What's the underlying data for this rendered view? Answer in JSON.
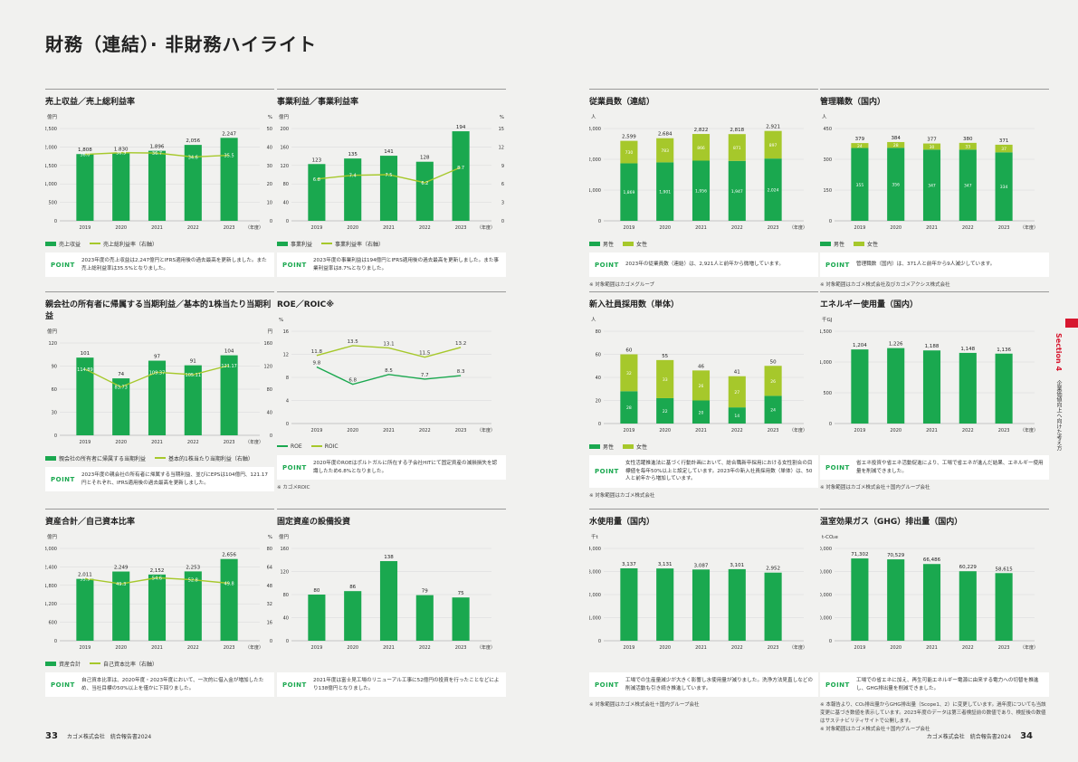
{
  "page_title": "財務（連結）· 非財務ハイライト",
  "section": {
    "label": "Section 4",
    "sub": "企業価値向上へ向けた考え方"
  },
  "footer": {
    "left_num": "33",
    "left_text": "カゴメ株式会社　統合報告書2024",
    "right_text": "カゴメ株式会社　統合報告書2024",
    "right_num": "34"
  },
  "colors": {
    "green": "#1aa84f",
    "lime": "#a6c82b",
    "line": "#a6c82b"
  },
  "panels": [
    {
      "id": "sales",
      "title": "売上収益／売上総利益率",
      "y_unit": "億円",
      "y2_unit": "%",
      "year_unit": "（年度）",
      "legend": [
        "売上収益",
        "売上総利益率（右軸）"
      ],
      "point_label": "POINT",
      "point": "2023年度の売上収益は2,247億円とIFRS適用後の過去最高を更新しました。また売上総利益率は35.5%となりました。",
      "note": ""
    },
    {
      "id": "bizprofit",
      "title": "事業利益／事業利益率",
      "y_unit": "億円",
      "y2_unit": "%",
      "year_unit": "（年度）",
      "legend": [
        "事業利益",
        "事業利益率（右軸）"
      ],
      "point_label": "POINT",
      "point": "2023年度の事業利益は194億円とIFRS適用後の過去最高を更新しました。また事業利益率は8.7%となりました。",
      "note": ""
    },
    {
      "id": "employees",
      "title": "従業員数（連結）",
      "y_unit": "人",
      "y2_unit": "",
      "year_unit": "（年度）",
      "legend": [
        "男性",
        "女性"
      ],
      "point_label": "POINT",
      "point": "2023年の従業員数（連結）は、2,921人と前年から微増しています。",
      "note": "※ 対象範囲はカゴメグループ"
    },
    {
      "id": "managers",
      "title": "管理職数（国内）",
      "y_unit": "人",
      "y2_unit": "",
      "year_unit": "（年度）",
      "legend": [
        "男性",
        "女性"
      ],
      "point_label": "POINT",
      "point": "管理職数（国内）は、371人と前年から9人減少しています。",
      "note": "※ 対象範囲はカゴメ株式会社及びカゴメアクシス株式会社"
    },
    {
      "id": "netprofit",
      "title": "親会社の所有者に帰属する当期利益／基本的1株当たり当期利益",
      "y_unit": "億円",
      "y2_unit": "円",
      "year_unit": "（年度）",
      "legend": [
        "親会社の所有者に帰属する当期利益",
        "基本的1株当たり当期利益（右軸）"
      ],
      "point_label": "POINT",
      "point": "2023年度の親会社の所有者に帰属する当期利益、並びにEPSは104億円、121.17円とそれぞれ、IFRS適用後の過去最高を更新しました。",
      "note": ""
    },
    {
      "id": "roe",
      "title": "ROE／ROIC※",
      "y_unit": "%",
      "y2_unit": "",
      "year_unit": "（年度）",
      "legend": [
        "ROE",
        "ROIC"
      ],
      "point_label": "POINT",
      "point": "2020年度のROEはポルトガルに所在する子会社HITにて固定資産の減損損失を認識したため6.8%となりました。",
      "note": "※ カゴメROIC"
    },
    {
      "id": "hires",
      "title": "新入社員採用数（単体）",
      "y_unit": "人",
      "y2_unit": "",
      "year_unit": "（年度）",
      "legend": [
        "男性",
        "女性"
      ],
      "point_label": "POINT",
      "point": "女性活躍推進法に基づく行動計画において、総合職新卒採用における女性割合の目標値を毎年50%以上と設定しています。2023年の新入社員採用数（単体）は、50人と前年から増加しています。",
      "note": "※ 対象範囲はカゴメ株式会社"
    },
    {
      "id": "energy",
      "title": "エネルギー使用量（国内）",
      "y_unit": "千GJ",
      "y2_unit": "",
      "year_unit": "（年度）",
      "legend": [],
      "point_label": "POINT",
      "point": "省エネ投資や省エネ活動促進により、工場で省エネが進んだ結果、エネルギー使用量を削減できました。",
      "note": "※ 対象範囲はカゴメ株式会社＋国内グループ会社"
    },
    {
      "id": "assets",
      "title": "資産合計／自己資本比率",
      "y_unit": "億円",
      "y2_unit": "%",
      "year_unit": "（年度）",
      "legend": [
        "資産合計",
        "自己資本比率（右軸）"
      ],
      "point_label": "POINT",
      "point": "自己資本比率は、2020年度・2023年度において、一次的に借入金が増加したため、当社目標の50%以上を僅かに下回りました。",
      "note": ""
    },
    {
      "id": "capex",
      "title": "固定資産の設備投資",
      "y_unit": "億円",
      "y2_unit": "",
      "year_unit": "（年度）",
      "legend": [],
      "point_label": "POINT",
      "point": "2021年度は富士見工場のリニューアル工事に52億円の投資を行ったことなどにより138億円となりました。",
      "note": ""
    },
    {
      "id": "water",
      "title": "水使用量（国内）",
      "y_unit": "千t",
      "y2_unit": "",
      "year_unit": "（年度）",
      "legend": [],
      "point_label": "POINT",
      "point": "工場での生産量減少が大きく影響し水使用量が減りました。洗浄方法見直しなどの削減活動も引き続き推進しています。",
      "note": "※ 対象範囲はカゴメ株式会社＋国内グループ会社"
    },
    {
      "id": "ghg",
      "title": "温室効果ガス（GHG）排出量（国内）",
      "y_unit": "t-CO₂e",
      "y2_unit": "",
      "year_unit": "（年度）",
      "legend": [],
      "point_label": "POINT",
      "point": "工場での省エネに加え、再生可能エネルギー電源に由来する電力への切替を推進し、GHG排出量を削減できました。",
      "note": "※ 本報告より、CO₂排出量からGHG排出量（Scope1、2）に変更しています。過年度についても当該変更に基づき数値を表示しています。2023年度のデータは第三者検証前の数値であり、検証後の数値はサステナビリティサイトで公開します。\n※ 対象範囲はカゴメ株式会社＋国内グループ会社"
    }
  ],
  "chart_data": [
    {
      "id": "sales",
      "type": "bar",
      "categories": [
        "2019",
        "2020",
        "2021",
        "2022",
        "2023"
      ],
      "ylim": [
        0,
        2500
      ],
      "yticks": [
        0,
        500,
        1000,
        1500,
        2000,
        2500
      ],
      "y2lim": [
        0,
        50
      ],
      "y2ticks": [
        0,
        10,
        20,
        30,
        40,
        50
      ],
      "series": [
        {
          "name": "売上収益",
          "values": [
            1808,
            1830,
            1896,
            2056,
            2247
          ],
          "labels": [
            "1,808",
            "1,830",
            "1,896",
            "2,056",
            "2,247"
          ]
        }
      ],
      "line": {
        "name": "売上総利益率（右軸）",
        "values": [
          36.0,
          36.9,
          36.7,
          34.6,
          35.5
        ],
        "labels": [
          "36.0",
          "36.9",
          "36.7",
          "34.6",
          "35.5"
        ],
        "axis": "y2"
      }
    },
    {
      "id": "bizprofit",
      "type": "bar",
      "categories": [
        "2019",
        "2020",
        "2021",
        "2022",
        "2023"
      ],
      "ylim": [
        0,
        200
      ],
      "yticks": [
        0,
        40,
        80,
        120,
        160,
        200
      ],
      "y2lim": [
        0,
        15
      ],
      "y2ticks": [
        0,
        3,
        6,
        9,
        12,
        15
      ],
      "series": [
        {
          "name": "事業利益",
          "values": [
            123,
            135,
            141,
            128,
            194
          ],
          "labels": [
            "123",
            "135",
            "141",
            "128",
            "194"
          ]
        }
      ],
      "line": {
        "name": "事業利益率（右軸）",
        "values": [
          6.8,
          7.4,
          7.5,
          6.2,
          8.7
        ],
        "labels": [
          "6.8",
          "7.4",
          "7.5",
          "6.2",
          "8.7"
        ],
        "axis": "y2"
      }
    },
    {
      "id": "employees",
      "type": "stacked_bar",
      "categories": [
        "2019",
        "2020",
        "2021",
        "2022",
        "2023"
      ],
      "ylim": [
        0,
        3000
      ],
      "yticks": [
        0,
        1000,
        2000,
        3000
      ],
      "series": [
        {
          "name": "男性",
          "values": [
            1869,
            1901,
            1956,
            1947,
            2024
          ],
          "labels": [
            "1,869",
            "1,901",
            "1,956",
            "1,947",
            "2,024"
          ]
        },
        {
          "name": "女性",
          "values": [
            730,
            783,
            866,
            871,
            897
          ],
          "labels": [
            "730",
            "783",
            "866",
            "871",
            "897"
          ]
        }
      ],
      "totals": [
        "2,599",
        "2,684",
        "2,822",
        "2,818",
        "2,921"
      ]
    },
    {
      "id": "managers",
      "type": "stacked_bar",
      "categories": [
        "2019",
        "2020",
        "2021",
        "2022",
        "2023"
      ],
      "ylim": [
        0,
        450
      ],
      "yticks": [
        0,
        150,
        300,
        450
      ],
      "series": [
        {
          "name": "男性",
          "values": [
            355,
            356,
            347,
            347,
            334
          ],
          "labels": [
            "355",
            "356",
            "347",
            "347",
            "334"
          ]
        },
        {
          "name": "女性",
          "values": [
            24,
            28,
            30,
            33,
            37
          ],
          "labels": [
            "24",
            "28",
            "30",
            "33",
            "37"
          ]
        }
      ],
      "totals": [
        "379",
        "384",
        "377",
        "380",
        "371"
      ]
    },
    {
      "id": "netprofit",
      "type": "bar",
      "categories": [
        "2019",
        "2020",
        "2021",
        "2022",
        "2023"
      ],
      "ylim": [
        0,
        120
      ],
      "yticks": [
        0,
        30,
        60,
        90,
        120
      ],
      "y2lim": [
        0,
        160
      ],
      "y2ticks": [
        0,
        40,
        80,
        120,
        160
      ],
      "series": [
        {
          "name": "親会社の所有者に帰属する当期利益",
          "values": [
            101,
            74,
            97,
            91,
            104
          ],
          "labels": [
            "101",
            "74",
            "97",
            "91",
            "104"
          ]
        }
      ],
      "line": {
        "name": "基本的1株当たり当期利益（右軸）",
        "values": [
          114.89,
          83.73,
          109.37,
          105.11,
          121.17
        ],
        "labels": [
          "114.89",
          "83.73",
          "109.37",
          "105.11",
          "121.17"
        ],
        "axis": "y2",
        "inside": true
      }
    },
    {
      "id": "roe",
      "type": "line",
      "categories": [
        "2019",
        "2020",
        "2021",
        "2022",
        "2023"
      ],
      "ylim": [
        0,
        16
      ],
      "yticks": [
        0,
        4,
        8,
        12,
        16
      ],
      "lines": [
        {
          "name": "ROE",
          "values": [
            9.8,
            6.8,
            8.5,
            7.7,
            8.3
          ],
          "labels": [
            "9.8",
            "6.8",
            "8.5",
            "7.7",
            "8.3"
          ],
          "color": "green"
        },
        {
          "name": "ROIC",
          "values": [
            11.8,
            13.5,
            13.1,
            11.5,
            13.2
          ],
          "labels": [
            "11.8",
            "13.5",
            "13.1",
            "11.5",
            "13.2"
          ],
          "color": "lime"
        }
      ]
    },
    {
      "id": "hires",
      "type": "stacked_bar",
      "categories": [
        "2019",
        "2020",
        "2021",
        "2022",
        "2023"
      ],
      "ylim": [
        0,
        80
      ],
      "yticks": [
        0,
        20,
        40,
        60,
        80
      ],
      "series": [
        {
          "name": "男性",
          "values": [
            28,
            22,
            20,
            14,
            24
          ],
          "labels": [
            "28",
            "22",
            "20",
            "14",
            "24"
          ]
        },
        {
          "name": "女性",
          "values": [
            32,
            33,
            26,
            27,
            26
          ],
          "labels": [
            "32",
            "33",
            "26",
            "27",
            "26"
          ]
        }
      ],
      "totals": [
        "60",
        "55",
        "46",
        "41",
        "50"
      ]
    },
    {
      "id": "energy",
      "type": "bar",
      "categories": [
        "2019",
        "2020",
        "2021",
        "2022",
        "2023"
      ],
      "ylim": [
        0,
        1500
      ],
      "yticks": [
        0,
        500,
        1000,
        1500
      ],
      "series": [
        {
          "name": "エネルギー使用量",
          "values": [
            1204,
            1226,
            1188,
            1148,
            1136
          ],
          "labels": [
            "1,204",
            "1,226",
            "1,188",
            "1,148",
            "1,136"
          ]
        }
      ]
    },
    {
      "id": "assets",
      "type": "bar",
      "categories": [
        "2019",
        "2020",
        "2021",
        "2022",
        "2023"
      ],
      "ylim": [
        0,
        3000
      ],
      "yticks": [
        0,
        600,
        1200,
        1800,
        2400,
        3000
      ],
      "y2lim": [
        0,
        80
      ],
      "y2ticks": [
        0,
        16,
        32,
        48,
        64,
        80
      ],
      "series": [
        {
          "name": "資産合計",
          "values": [
            2011,
            2249,
            2152,
            2253,
            2656
          ],
          "labels": [
            "2,011",
            "2,249",
            "2,152",
            "2,253",
            "2,656"
          ]
        }
      ],
      "line": {
        "name": "自己資本比率（右軸）",
        "values": [
          53.9,
          49.3,
          54.6,
          52.8,
          49.8
        ],
        "labels": [
          "53.9",
          "49.3",
          "54.6",
          "52.8",
          "49.8"
        ],
        "axis": "y2",
        "inside": true
      }
    },
    {
      "id": "capex",
      "type": "bar",
      "categories": [
        "2019",
        "2020",
        "2021",
        "2022",
        "2023"
      ],
      "ylim": [
        0,
        160
      ],
      "yticks": [
        0,
        40,
        80,
        120,
        160
      ],
      "series": [
        {
          "name": "設備投資",
          "values": [
            80,
            86,
            138,
            79,
            75
          ],
          "labels": [
            "80",
            "86",
            "138",
            "79",
            "75"
          ]
        }
      ]
    },
    {
      "id": "water",
      "type": "bar",
      "categories": [
        "2019",
        "2020",
        "2021",
        "2022",
        "2023"
      ],
      "ylim": [
        0,
        4000
      ],
      "yticks": [
        0,
        1000,
        2000,
        3000,
        4000
      ],
      "series": [
        {
          "name": "水使用量",
          "values": [
            3137,
            3131,
            3087,
            3101,
            2952
          ],
          "labels": [
            "3,137",
            "3,131",
            "3,087",
            "3,101",
            "2,952"
          ]
        }
      ]
    },
    {
      "id": "ghg",
      "type": "bar",
      "categories": [
        "2019",
        "2020",
        "2021",
        "2022",
        "2023"
      ],
      "ylim": [
        0,
        80000
      ],
      "yticks": [
        0,
        20000,
        40000,
        60000,
        80000
      ],
      "series": [
        {
          "name": "GHG排出量",
          "values": [
            71302,
            70529,
            66486,
            60229,
            58615
          ],
          "labels": [
            "71,302",
            "70,529",
            "66,486",
            "60,229",
            "58,615"
          ]
        }
      ]
    }
  ]
}
